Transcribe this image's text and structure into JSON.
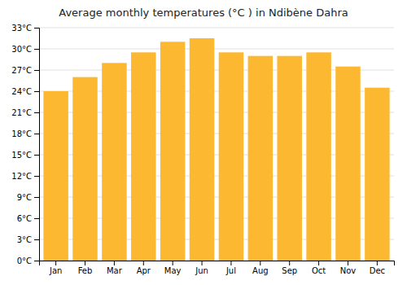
{
  "chart_data": {
    "type": "bar",
    "title": "Average monthly temperatures (°C ) in Ndibène Dahra",
    "categories": [
      "Jan",
      "Feb",
      "Mar",
      "Apr",
      "May",
      "Jun",
      "Jul",
      "Aug",
      "Sep",
      "Oct",
      "Nov",
      "Dec"
    ],
    "values": [
      24.0,
      26.0,
      28.0,
      29.5,
      31.0,
      31.5,
      29.5,
      29.0,
      29.0,
      29.5,
      27.5,
      24.5
    ],
    "color": "#FDB832",
    "ylim": [
      0,
      33
    ],
    "yticks": [
      {
        "value": 0,
        "label": "0°C"
      },
      {
        "value": 3,
        "label": "3°C"
      },
      {
        "value": 6,
        "label": "6°C"
      },
      {
        "value": 9,
        "label": "9°C"
      },
      {
        "value": 12,
        "label": "12°C"
      },
      {
        "value": 15,
        "label": "15°C"
      },
      {
        "value": 18,
        "label": "18°C"
      },
      {
        "value": 21,
        "label": "21°C"
      },
      {
        "value": 24,
        "label": "24°C"
      },
      {
        "value": 27,
        "label": "27°C"
      },
      {
        "value": 30,
        "label": "30°C"
      },
      {
        "value": 33,
        "label": "33°C"
      }
    ],
    "grid": true
  }
}
